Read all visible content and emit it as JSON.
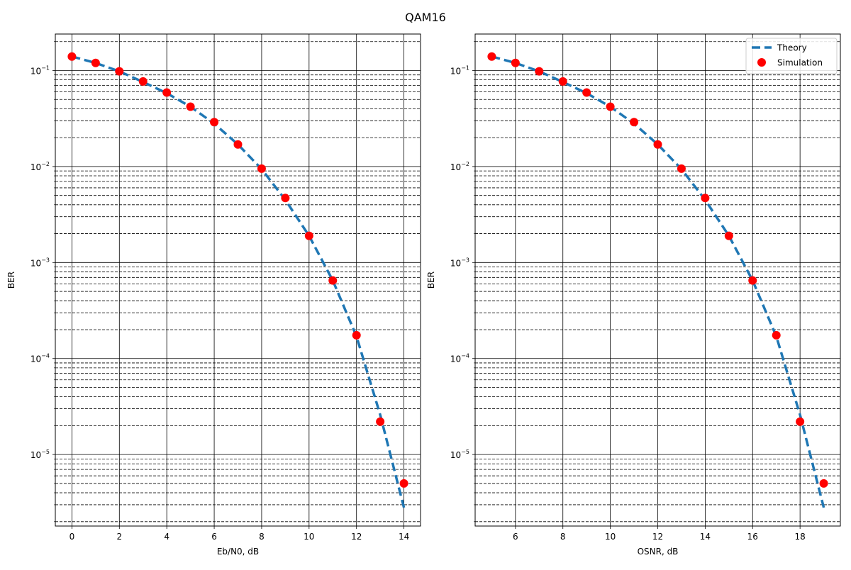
{
  "figure": {
    "title": "QAM16"
  },
  "chart_data": [
    {
      "type": "line",
      "xlabel": "Eb/N0, dB",
      "ylabel": "BER",
      "yscale": "log",
      "xlim": [
        -0.7,
        14.7
      ],
      "ylim": [
        1.8e-06,
        0.24
      ],
      "xticks": [
        0,
        2,
        4,
        6,
        8,
        10,
        12,
        14
      ],
      "xtick_labels": [
        "0",
        "2",
        "4",
        "6",
        "8",
        "10",
        "12",
        "14"
      ],
      "yticks": [
        1e-05,
        0.0001,
        0.001,
        0.01,
        0.1
      ],
      "ytick_labels": [
        {
          "base": "10",
          "exp": "−5"
        },
        {
          "base": "10",
          "exp": "−4"
        },
        {
          "base": "10",
          "exp": "−3"
        },
        {
          "base": "10",
          "exp": "−2"
        },
        {
          "base": "10",
          "exp": "−1"
        }
      ],
      "grid": {
        "major": "solid",
        "minor_y": "dashed"
      },
      "legend": null,
      "series": [
        {
          "name": "Theory",
          "style": "dashed-line",
          "color": "#1f77b4",
          "x": [
            0,
            1,
            2,
            3,
            4,
            5,
            6,
            7,
            8,
            9,
            10,
            11,
            12,
            13,
            14
          ],
          "y": [
            0.14,
            0.12,
            0.098,
            0.076,
            0.058,
            0.042,
            0.028,
            0.017,
            0.0094,
            0.0045,
            0.0019,
            0.00065,
            0.00017,
            2.6e-05,
            2.8e-06
          ]
        },
        {
          "name": "Simulation",
          "style": "markers",
          "color": "#ff0000",
          "x": [
            0,
            1,
            2,
            3,
            4,
            5,
            6,
            7,
            8,
            9,
            10,
            11,
            12,
            13,
            14
          ],
          "y": [
            0.14,
            0.12,
            0.098,
            0.077,
            0.059,
            0.042,
            0.029,
            0.017,
            0.0095,
            0.0047,
            0.0019,
            0.00065,
            0.000175,
            2.2e-05,
            5e-06
          ]
        }
      ]
    },
    {
      "type": "line",
      "xlabel": "OSNR, dB",
      "ylabel": "BER",
      "yscale": "log",
      "xlim": [
        4.3,
        19.7
      ],
      "ylim": [
        1.8e-06,
        0.24
      ],
      "xticks": [
        6,
        8,
        10,
        12,
        14,
        16,
        18
      ],
      "xtick_labels": [
        "6",
        "8",
        "10",
        "12",
        "14",
        "16",
        "18"
      ],
      "yticks": [
        1e-05,
        0.0001,
        0.001,
        0.01,
        0.1
      ],
      "ytick_labels": [
        {
          "base": "10",
          "exp": "−5"
        },
        {
          "base": "10",
          "exp": "−4"
        },
        {
          "base": "10",
          "exp": "−3"
        },
        {
          "base": "10",
          "exp": "−2"
        },
        {
          "base": "10",
          "exp": "−1"
        }
      ],
      "grid": {
        "major": "solid",
        "minor_y": "dashed"
      },
      "legend": "top-right",
      "series": [
        {
          "name": "Theory",
          "style": "dashed-line",
          "color": "#1f77b4",
          "x": [
            5,
            6,
            7,
            8,
            9,
            10,
            11,
            12,
            13,
            14,
            15,
            16,
            17,
            18,
            19
          ],
          "y": [
            0.14,
            0.12,
            0.098,
            0.076,
            0.058,
            0.042,
            0.028,
            0.017,
            0.0094,
            0.0045,
            0.0019,
            0.00065,
            0.00017,
            2.6e-05,
            2.8e-06
          ]
        },
        {
          "name": "Simulation",
          "style": "markers",
          "color": "#ff0000",
          "x": [
            5,
            6,
            7,
            8,
            9,
            10,
            11,
            12,
            13,
            14,
            15,
            16,
            17,
            18,
            19
          ],
          "y": [
            0.14,
            0.12,
            0.098,
            0.077,
            0.059,
            0.042,
            0.029,
            0.017,
            0.0095,
            0.0047,
            0.0019,
            0.00065,
            0.000175,
            2.2e-05,
            5e-06
          ]
        }
      ]
    }
  ]
}
